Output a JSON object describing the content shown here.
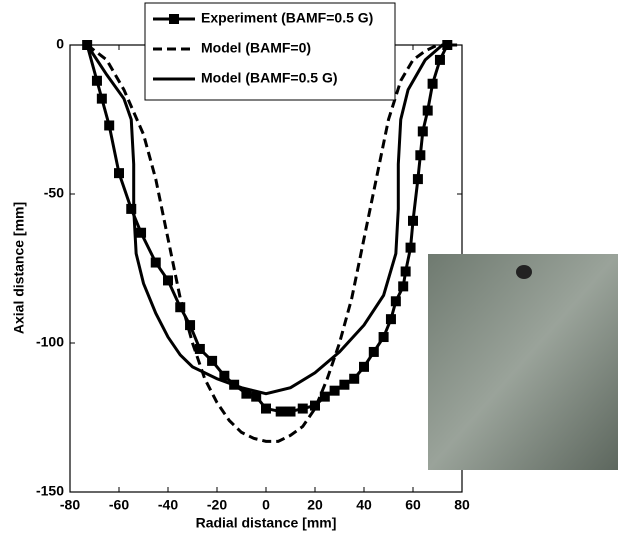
{
  "chart_data": {
    "type": "line",
    "xlabel": "Radial distance [mm]",
    "ylabel": "Axial distance [mm]",
    "xlim": [
      -80,
      80
    ],
    "ylim": [
      -150,
      0
    ],
    "xticks": [
      -80,
      -60,
      -40,
      -20,
      0,
      20,
      40,
      60,
      80
    ],
    "yticks": [
      -150,
      -100,
      -50,
      0
    ],
    "legend": "upper center",
    "series": [
      {
        "name": "Experiment (BAMF=0.5 G)",
        "color": "#000000",
        "dash": "solid",
        "marker": "square",
        "x": [
          -73,
          -69,
          -67,
          -64,
          -60,
          -55,
          -51,
          -45,
          -40,
          -35,
          -31,
          -27,
          -22,
          -17,
          -13,
          -8,
          -4,
          0,
          6,
          10,
          15,
          20,
          24,
          28,
          32,
          36,
          40,
          44,
          48,
          51,
          53,
          56,
          57,
          59,
          60,
          62,
          63,
          64,
          66,
          68,
          71,
          74
        ],
        "values": [
          0,
          -12,
          -18,
          -27,
          -43,
          -55,
          -63,
          -73,
          -79,
          -88,
          -94,
          -102,
          -106,
          -111,
          -114,
          -117,
          -118,
          -122,
          -123,
          -123,
          -122,
          -121,
          -118,
          -116,
          -114,
          -112,
          -108,
          -103,
          -98,
          -92,
          -86,
          -81,
          -76,
          -68,
          -59,
          -45,
          -37,
          -29,
          -22,
          -13,
          -5,
          0
        ]
      },
      {
        "name": "Model (BAMF=0)",
        "color": "#000000",
        "dash": "dashed",
        "marker": "none",
        "x": [
          -73,
          -65,
          -58,
          -50,
          -45,
          -40,
          -35,
          -30,
          -25,
          -20,
          -15,
          -10,
          -5,
          0,
          5,
          10,
          15,
          20,
          25,
          30,
          35,
          40,
          45,
          50,
          55,
          60,
          65,
          70
        ],
        "values": [
          0,
          -5,
          -15,
          -30,
          -45,
          -65,
          -85,
          -100,
          -112,
          -120,
          -126,
          -130,
          -132,
          -133,
          -133,
          -131,
          -128,
          -122,
          -112,
          -100,
          -85,
          -65,
          -45,
          -25,
          -12,
          -5,
          -2,
          0
        ]
      },
      {
        "name": "Model (BAMF=0.5 G)",
        "color": "#000000",
        "dash": "solid",
        "marker": "none",
        "x": [
          -73,
          -65,
          -58,
          -55,
          -54,
          -54,
          -53,
          -50,
          -45,
          -40,
          -35,
          -30,
          -20,
          -10,
          0,
          10,
          20,
          30,
          40,
          48,
          53,
          54,
          54,
          55,
          58,
          65,
          72,
          78
        ],
        "values": [
          0,
          -10,
          -18,
          -25,
          -40,
          -55,
          -70,
          -80,
          -90,
          -98,
          -104,
          -108,
          -112,
          -115,
          -117,
          -115,
          -110,
          -103,
          -94,
          -84,
          -70,
          -55,
          -40,
          -25,
          -15,
          -5,
          0,
          0
        ]
      }
    ]
  }
}
